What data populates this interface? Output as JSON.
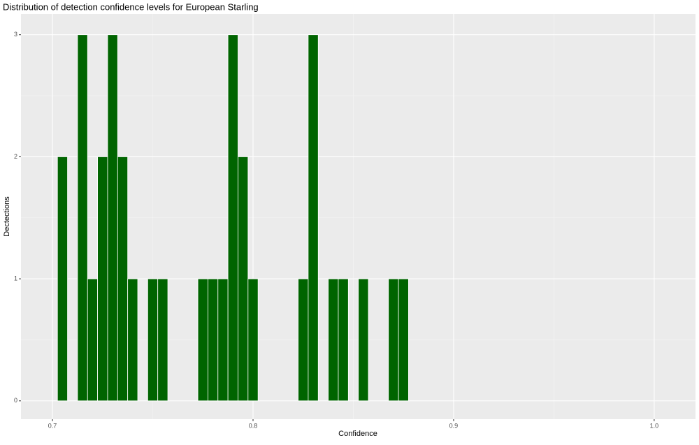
{
  "chart_data": {
    "type": "histogram",
    "title": "Distribution of detection confidence levels for European Starling",
    "x_label": "Confidence",
    "y_label": "Dectections",
    "bins": [
      0.7025,
      0.7075,
      0.7125,
      0.7175,
      0.7225,
      0.7275,
      0.7325,
      0.7375,
      0.7425,
      0.7475,
      0.7525,
      0.7575,
      0.7625,
      0.7675,
      0.7725,
      0.7775,
      0.7825,
      0.7875,
      0.7925,
      0.7975,
      0.8025,
      0.8075,
      0.8125,
      0.8175,
      0.8225,
      0.8275,
      0.8325,
      0.8375,
      0.8425,
      0.8475,
      0.8525,
      0.8575,
      0.8625,
      0.8675,
      0.8725,
      0.8775
    ],
    "values": [
      2,
      0,
      3,
      1,
      2,
      3,
      2,
      1,
      0,
      1,
      1,
      0,
      0,
      0,
      1,
      1,
      1,
      3,
      2,
      1,
      0,
      0,
      0,
      0,
      1,
      3,
      0,
      1,
      1,
      0,
      1,
      0,
      0,
      1,
      1
    ],
    "color": "#006400",
    "xlim": [
      0.6843,
      1.0206
    ],
    "xticks": [
      0.7,
      0.8,
      0.9,
      {
        "value": 1,
        "label": "1.0"
      }
    ],
    "ylim": [
      -0.15,
      3.17
    ],
    "yticks": [
      0,
      1,
      2,
      3
    ],
    "grid": true
  }
}
